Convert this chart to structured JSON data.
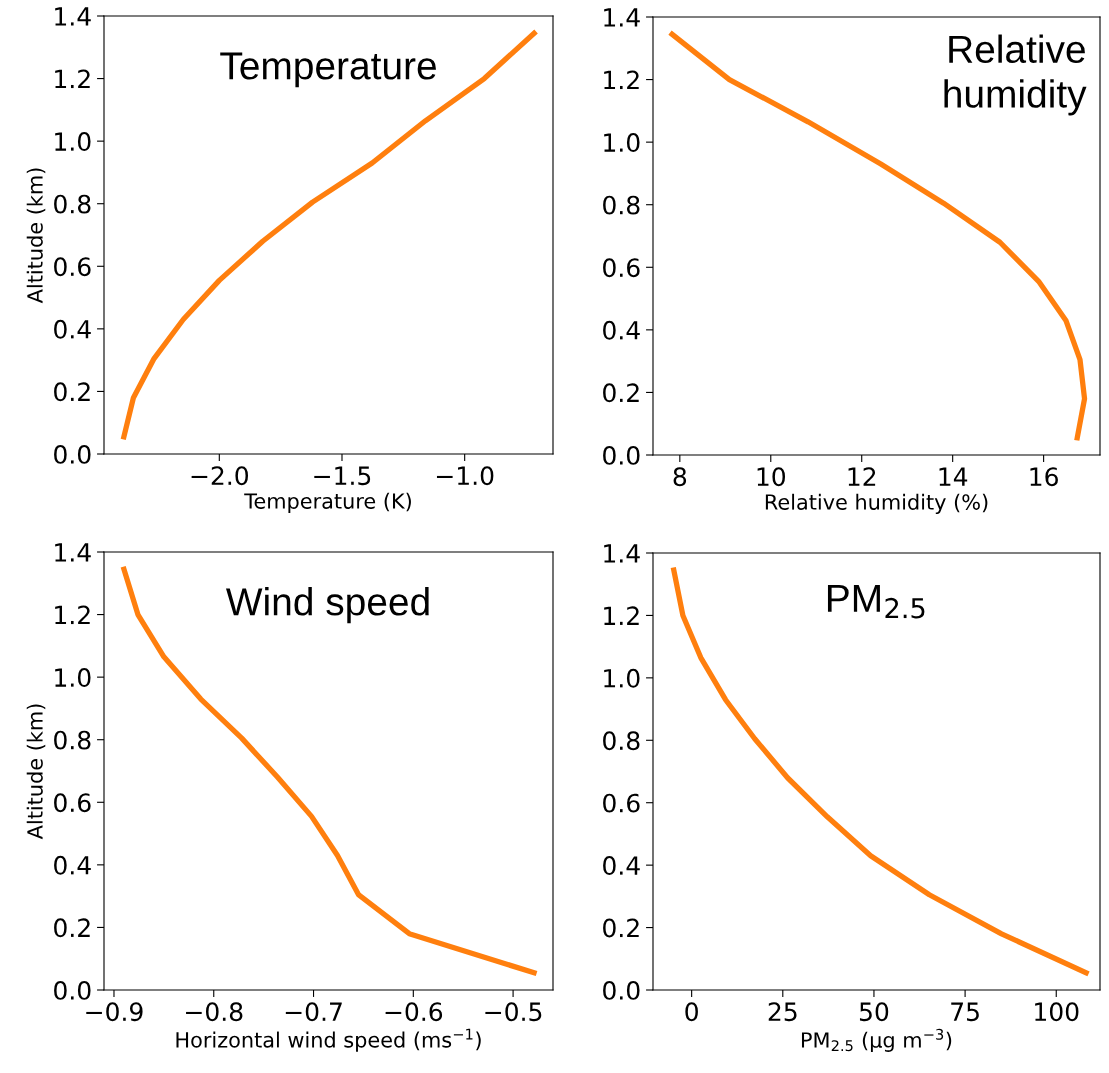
{
  "chart_data": [
    {
      "type": "line",
      "title": "Temperature",
      "xlabel": "Temperature (K)",
      "ylabel": "Altitude (km)",
      "xlim": [
        -2.47,
        -0.64
      ],
      "xticks": [
        {
          "value": -2.0,
          "label": "−2.0"
        },
        {
          "value": -1.5,
          "label": "−1.5"
        },
        {
          "value": -1.0,
          "label": "−1.0"
        }
      ],
      "ylim": [
        0,
        1.4
      ],
      "yticks": [
        {
          "value": 0,
          "label": "0.0"
        },
        {
          "value": 0.2,
          "label": "0.2"
        },
        {
          "value": 0.4,
          "label": "0.4"
        },
        {
          "value": 0.6,
          "label": "0.6"
        },
        {
          "value": 0.8,
          "label": "0.8"
        },
        {
          "value": 1.0,
          "label": "1.0"
        },
        {
          "value": 1.2,
          "label": "1.2"
        },
        {
          "value": 1.4,
          "label": "1.4"
        }
      ],
      "grid": false,
      "legend": false,
      "marker": "none",
      "line_style": "solid",
      "series": [
        {
          "color": "#ff7f0e",
          "x": [
            -2.389,
            -2.35,
            -2.266,
            -2.147,
            -2.0,
            -1.823,
            -1.62,
            -1.377,
            -1.16,
            -0.92,
            -0.717
          ],
          "values": [
            0.055,
            0.18,
            0.305,
            0.43,
            0.555,
            0.68,
            0.805,
            0.93,
            1.065,
            1.2,
            1.345
          ]
        }
      ]
    },
    {
      "type": "line",
      "title": "Relative\nhumidity",
      "xlabel": "Relative humidity (%)",
      "xlim": [
        7.41,
        17.24
      ],
      "xticks": [
        8,
        10,
        12,
        14,
        16
      ],
      "ylim": [
        0,
        1.4
      ],
      "yticks": [
        {
          "value": 0,
          "label": "0.0"
        },
        {
          "value": 0.2,
          "label": "0.2"
        },
        {
          "value": 0.4,
          "label": "0.4"
        },
        {
          "value": 0.6,
          "label": "0.6"
        },
        {
          "value": 0.8,
          "label": "0.8"
        },
        {
          "value": 1.0,
          "label": "1.0"
        },
        {
          "value": 1.2,
          "label": "1.2"
        },
        {
          "value": 1.4,
          "label": "1.4"
        }
      ],
      "grid": false,
      "legend": false,
      "marker": "none",
      "line_style": "solid",
      "series": [
        {
          "color": "#ff7f0e",
          "x": [
            16.74,
            16.9,
            16.8,
            16.49,
            15.89,
            15.04,
            13.8,
            12.42,
            10.82,
            9.09,
            7.83
          ],
          "values": [
            0.055,
            0.18,
            0.305,
            0.43,
            0.555,
            0.68,
            0.805,
            0.93,
            1.065,
            1.2,
            1.345
          ]
        }
      ]
    },
    {
      "type": "line",
      "title": "Wind speed",
      "xlabel": "Horizontal wind speed (ms$^{−1}$)",
      "ylabel": "Altitude (km)",
      "xlim": [
        -0.91,
        -0.46
      ],
      "xticks": [
        {
          "value": -0.9,
          "label": "−0.9"
        },
        {
          "value": -0.8,
          "label": "−0.8"
        },
        {
          "value": -0.7,
          "label": "−0.7"
        },
        {
          "value": -0.6,
          "label": "−0.6"
        },
        {
          "value": -0.5,
          "label": "−0.5"
        }
      ],
      "ylim": [
        0,
        1.4
      ],
      "yticks": [
        {
          "value": 0,
          "label": "0.0"
        },
        {
          "value": 0.2,
          "label": "0.2"
        },
        {
          "value": 0.4,
          "label": "0.4"
        },
        {
          "value": 0.6,
          "label": "0.6"
        },
        {
          "value": 0.8,
          "label": "0.8"
        },
        {
          "value": 1.0,
          "label": "1.0"
        },
        {
          "value": 1.2,
          "label": "1.2"
        },
        {
          "value": 1.4,
          "label": "1.4"
        }
      ],
      "grid": false,
      "legend": false,
      "marker": "none",
      "line_style": "solid",
      "series": [
        {
          "color": "#ff7f0e",
          "x": [
            -0.479,
            -0.604,
            -0.655,
            -0.676,
            -0.702,
            -0.736,
            -0.772,
            -0.813,
            -0.85,
            -0.876,
            -0.89
          ],
          "values": [
            0.055,
            0.18,
            0.305,
            0.43,
            0.555,
            0.68,
            0.805,
            0.93,
            1.065,
            1.2,
            1.345
          ]
        }
      ]
    },
    {
      "type": "line",
      "title": "PM$_{2.5}$",
      "xlabel": "PM$_{2.5}$ (μg m$^{−3}$)",
      "xlim": [
        -10.6,
        112
      ],
      "xticks": [
        0,
        25,
        50,
        75,
        100
      ],
      "ylim": [
        0,
        1.4
      ],
      "yticks": [
        {
          "value": 0,
          "label": "0.0"
        },
        {
          "value": 0.2,
          "label": "0.2"
        },
        {
          "value": 0.4,
          "label": "0.4"
        },
        {
          "value": 0.6,
          "label": "0.6"
        },
        {
          "value": 0.8,
          "label": "0.8"
        },
        {
          "value": 1.0,
          "label": "1.0"
        },
        {
          "value": 1.2,
          "label": "1.2"
        },
        {
          "value": 1.4,
          "label": "1.4"
        }
      ],
      "grid": false,
      "legend": false,
      "marker": "none",
      "line_style": "solid",
      "series": [
        {
          "color": "#ff7f0e",
          "x": [
            108.2,
            85.0,
            65.2,
            49.1,
            37.2,
            26.3,
            17.3,
            9.3,
            2.5,
            -2.4,
            -4.9
          ],
          "values": [
            0.055,
            0.18,
            0.305,
            0.43,
            0.555,
            0.68,
            0.805,
            0.93,
            1.065,
            1.2,
            1.345
          ]
        }
      ]
    }
  ]
}
